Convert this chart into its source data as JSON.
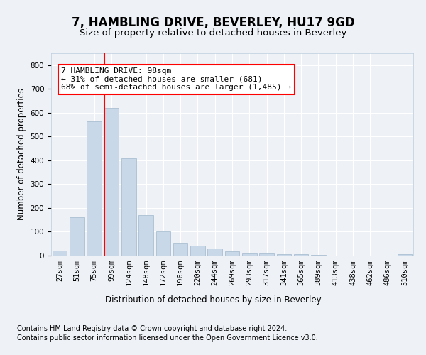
{
  "title": "7, HAMBLING DRIVE, BEVERLEY, HU17 9GD",
  "subtitle": "Size of property relative to detached houses in Beverley",
  "xlabel": "Distribution of detached houses by size in Beverley",
  "ylabel": "Number of detached properties",
  "categories": [
    "27sqm",
    "51sqm",
    "75sqm",
    "99sqm",
    "124sqm",
    "148sqm",
    "172sqm",
    "196sqm",
    "220sqm",
    "244sqm",
    "269sqm",
    "293sqm",
    "317sqm",
    "341sqm",
    "365sqm",
    "389sqm",
    "413sqm",
    "438sqm",
    "462sqm",
    "486sqm",
    "510sqm"
  ],
  "values": [
    20,
    161,
    563,
    620,
    410,
    170,
    102,
    55,
    42,
    30,
    17,
    10,
    9,
    5,
    5,
    2,
    0,
    0,
    0,
    0,
    7
  ],
  "bar_color": "#c8d8e8",
  "bar_edge_color": "#a0b8cc",
  "vline_x_index": 3,
  "vline_color": "red",
  "annotation_text": "7 HAMBLING DRIVE: 98sqm\n← 31% of detached houses are smaller (681)\n68% of semi-detached houses are larger (1,485) →",
  "annotation_box_color": "white",
  "annotation_box_edge_color": "red",
  "ylim": [
    0,
    850
  ],
  "yticks": [
    0,
    100,
    200,
    300,
    400,
    500,
    600,
    700,
    800
  ],
  "footer_line1": "Contains HM Land Registry data © Crown copyright and database right 2024.",
  "footer_line2": "Contains public sector information licensed under the Open Government Licence v3.0.",
  "bg_color": "#eef2f7",
  "axes_bg_color": "#eef2f7",
  "grid_color": "white",
  "title_fontsize": 12,
  "subtitle_fontsize": 9.5,
  "axis_label_fontsize": 8.5,
  "tick_fontsize": 7.5,
  "footer_fontsize": 7,
  "ann_fontsize": 8
}
